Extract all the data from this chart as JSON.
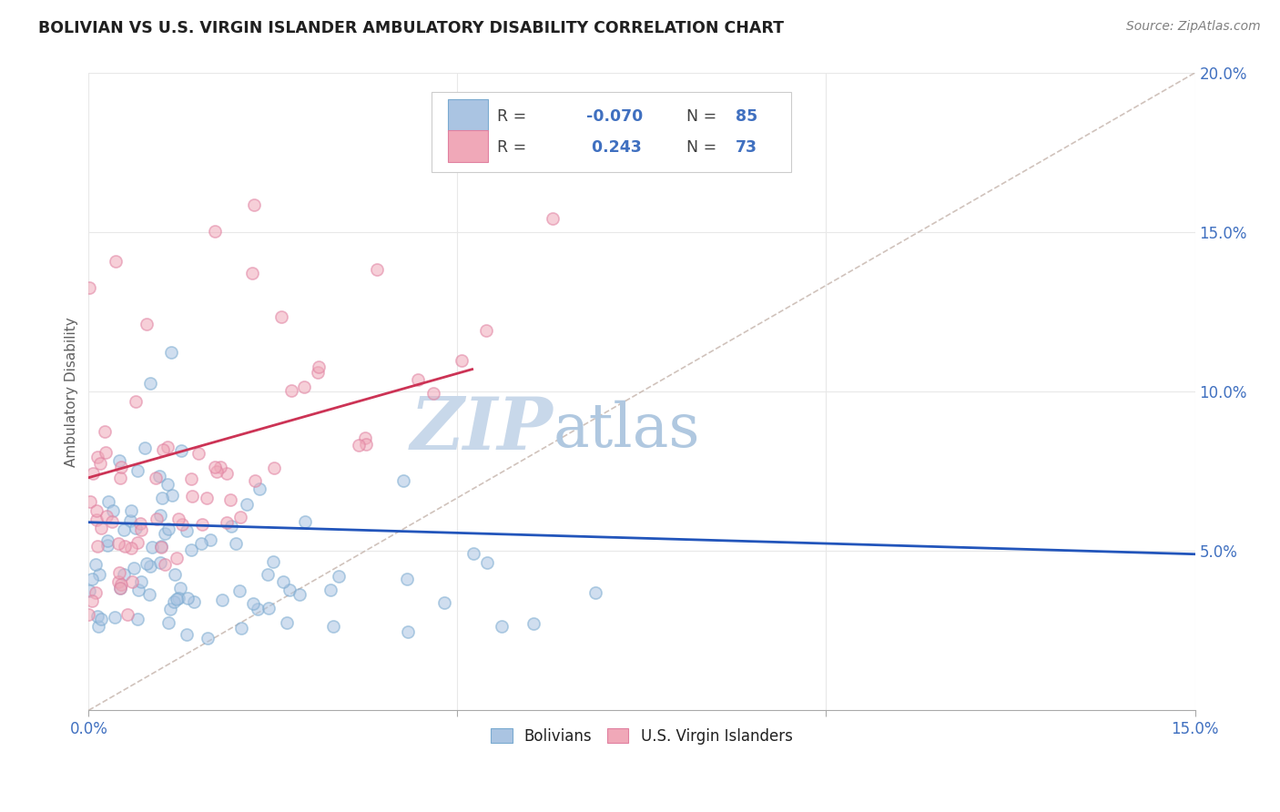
{
  "title": "BOLIVIAN VS U.S. VIRGIN ISLANDER AMBULATORY DISABILITY CORRELATION CHART",
  "source": "Source: ZipAtlas.com",
  "ylabel": "Ambulatory Disability",
  "xmin": 0.0,
  "xmax": 0.15,
  "ymin": 0.0,
  "ymax": 0.2,
  "xtick_positions": [
    0.0,
    0.05,
    0.1,
    0.15
  ],
  "xtick_labels_left": [
    "0.0%",
    "",
    "",
    ""
  ],
  "xtick_label_right": "15.0%",
  "ytick_positions": [
    0.05,
    0.1,
    0.15,
    0.2
  ],
  "ytick_labels": [
    "5.0%",
    "10.0%",
    "15.0%",
    "20.0%"
  ],
  "legend_labels": [
    "Bolivians",
    "U.S. Virgin Islanders"
  ],
  "blue_color": "#aac4e2",
  "pink_color": "#f0a8b8",
  "blue_edge_color": "#7aaad0",
  "pink_edge_color": "#e080a0",
  "blue_line_color": "#2255bb",
  "pink_line_color": "#cc3355",
  "r_blue": -0.07,
  "n_blue": 85,
  "r_pink": 0.243,
  "n_pink": 73,
  "watermark_zip": "ZIP",
  "watermark_atlas": "atlas",
  "watermark_color_zip": "#c8d8ea",
  "watermark_color_atlas": "#b0c8e0",
  "background_color": "#ffffff",
  "grid_color": "#e8e8e8",
  "title_color": "#202020",
  "axis_label_color": "#606060",
  "tick_color": "#4070c0",
  "legend_r_color": "#4070c0",
  "dot_size": 90,
  "dot_alpha": 0.55,
  "dot_linewidth": 1.2
}
